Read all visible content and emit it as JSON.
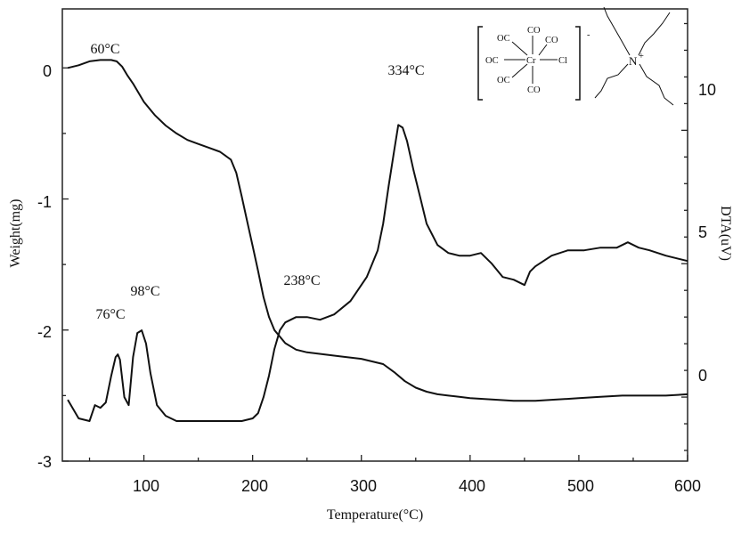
{
  "chart_data": {
    "type": "line",
    "xlabel": "Temperature(°C)",
    "ylabel_left": "Weight(mg)",
    "ylabel_right": "DTA(uV)",
    "xlim": [
      25,
      600
    ],
    "ylim_left": [
      -3,
      0.45
    ],
    "ylim_right": [
      -2.4,
      14.55
    ],
    "x_ticks": [
      "100",
      "200",
      "300",
      "400",
      "500",
      "600"
    ],
    "y_left_ticks": [
      "0",
      "-1",
      "-2",
      "-3"
    ],
    "y_right_ticks": [
      "0",
      "5",
      "10"
    ],
    "grid": false,
    "series": [
      {
        "axis": "left",
        "x": [
          30,
          40,
          50,
          60,
          70,
          75,
          80,
          85,
          90,
          100,
          110,
          120,
          130,
          140,
          150,
          160,
          170,
          180,
          185,
          190,
          195,
          200,
          205,
          210,
          215,
          220,
          230,
          240,
          250,
          260,
          280,
          300,
          320,
          330,
          340,
          350,
          360,
          370,
          380,
          390,
          400,
          420,
          440,
          460,
          480,
          500,
          520,
          540,
          560,
          580,
          600
        ],
        "y": [
          0.0,
          0.02,
          0.05,
          0.06,
          0.06,
          0.05,
          0.01,
          -0.06,
          -0.12,
          -0.26,
          -0.36,
          -0.44,
          -0.5,
          -0.55,
          -0.58,
          -0.61,
          -0.64,
          -0.7,
          -0.8,
          -0.98,
          -1.17,
          -1.36,
          -1.55,
          -1.75,
          -1.9,
          -2.0,
          -2.1,
          -2.15,
          -2.17,
          -2.18,
          -2.2,
          -2.22,
          -2.26,
          -2.32,
          -2.39,
          -2.44,
          -2.47,
          -2.49,
          -2.5,
          -2.51,
          -2.52,
          -2.53,
          -2.54,
          -2.54,
          -2.53,
          -2.52,
          -2.51,
          -2.5,
          -2.5,
          -2.5,
          -2.49
        ]
      },
      {
        "axis": "right",
        "x": [
          30,
          40,
          50,
          55,
          60,
          65,
          70,
          74,
          76,
          78,
          82,
          86,
          90,
          94,
          98,
          102,
          106,
          112,
          120,
          130,
          145,
          160,
          175,
          190,
          200,
          205,
          210,
          215,
          220,
          225,
          230,
          240,
          250,
          262,
          275,
          290,
          305,
          315,
          320,
          325,
          330,
          334,
          338,
          342,
          348,
          354,
          360,
          370,
          380,
          390,
          400,
          410,
          420,
          430,
          440,
          450,
          455,
          460,
          475,
          490,
          505,
          520,
          535,
          545,
          555,
          565,
          580,
          600
        ],
        "y": [
          -0.1,
          -0.8,
          -0.9,
          -0.3,
          -0.4,
          -0.2,
          0.8,
          1.5,
          1.6,
          1.4,
          0.0,
          -0.3,
          1.5,
          2.4,
          2.5,
          2.0,
          0.9,
          -0.3,
          -0.7,
          -0.9,
          -0.9,
          -0.9,
          -0.9,
          -0.9,
          -0.8,
          -0.6,
          0.0,
          0.8,
          1.8,
          2.5,
          2.8,
          3.0,
          3.0,
          2.9,
          3.1,
          3.6,
          4.5,
          5.5,
          6.5,
          7.9,
          9.2,
          10.2,
          10.1,
          9.6,
          8.5,
          7.5,
          6.5,
          5.7,
          5.4,
          5.3,
          5.3,
          5.4,
          5.0,
          4.5,
          4.4,
          4.2,
          4.7,
          4.9,
          5.3,
          5.5,
          5.5,
          5.6,
          5.6,
          5.8,
          5.6,
          5.5,
          5.3,
          5.1
        ]
      }
    ],
    "annotations": [
      {
        "text": "60°C",
        "x": 60,
        "axis": "left",
        "y": 0.06
      },
      {
        "text": "76°C",
        "x": 76,
        "axis": "right",
        "y": 1.6
      },
      {
        "text": "98°C",
        "x": 98,
        "axis": "right",
        "y": 2.5
      },
      {
        "text": "238°C",
        "x": 238,
        "axis": "right",
        "y": 3.0
      },
      {
        "text": "334°C",
        "x": 334,
        "axis": "right",
        "y": 10.2
      }
    ]
  },
  "structure": {
    "ligands": [
      "OC",
      "OC",
      "OC",
      "CO",
      "CO",
      "CO"
    ],
    "metal": "Cr",
    "halide": "Cl",
    "anion_charge": "-",
    "cation_atom": "N",
    "cation_charge": "+"
  }
}
